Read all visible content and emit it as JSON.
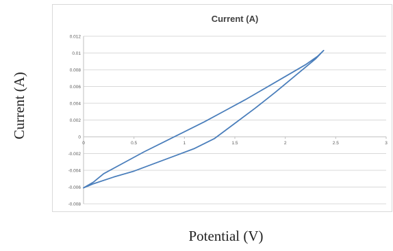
{
  "outer_labels": {
    "y": "Current (A)",
    "x": "Potential (V)"
  },
  "colors": {
    "series": "#4a7ebb",
    "grid": "#d9d9d9",
    "text": "#595959"
  },
  "chart_data": {
    "type": "line",
    "title": "Current (A)",
    "xlabel": "",
    "ylabel": "",
    "xlim": [
      0,
      3
    ],
    "ylim": [
      -0.008,
      0.012
    ],
    "x_ticks": [
      "0",
      "0.5",
      "1",
      "1.5",
      "2",
      "2.5",
      "3"
    ],
    "y_ticks": [
      "0.012",
      "0.01",
      "0.008",
      "0.006",
      "0.004",
      "0.002",
      "0",
      "-0.002",
      "-0.004",
      "-0.006",
      "-0.008"
    ],
    "grid": "horizontal",
    "legend": "none",
    "series": [
      {
        "points": [
          [
            0.0,
            -0.0061
          ],
          [
            0.1,
            -0.0054
          ],
          [
            0.2,
            -0.0044
          ],
          [
            0.4,
            -0.0031
          ],
          [
            0.6,
            -0.0018
          ],
          [
            0.8,
            -0.0006
          ],
          [
            1.0,
            0.0006
          ],
          [
            1.2,
            0.0018
          ],
          [
            1.4,
            0.0031
          ],
          [
            1.6,
            0.0044
          ],
          [
            1.8,
            0.0058
          ],
          [
            2.0,
            0.0072
          ],
          [
            2.2,
            0.0086
          ],
          [
            2.32,
            0.0096
          ],
          [
            2.38,
            0.0103
          ],
          [
            2.3,
            0.0093
          ],
          [
            2.1,
            0.0073
          ],
          [
            1.9,
            0.0053
          ],
          [
            1.7,
            0.0034
          ],
          [
            1.5,
            0.0016
          ],
          [
            1.3,
            -0.0002
          ],
          [
            1.1,
            -0.0014
          ],
          [
            0.9,
            -0.0023
          ],
          [
            0.7,
            -0.0032
          ],
          [
            0.5,
            -0.0041
          ],
          [
            0.3,
            -0.0048
          ],
          [
            0.1,
            -0.0056
          ],
          [
            0.0,
            -0.0061
          ]
        ]
      }
    ]
  }
}
